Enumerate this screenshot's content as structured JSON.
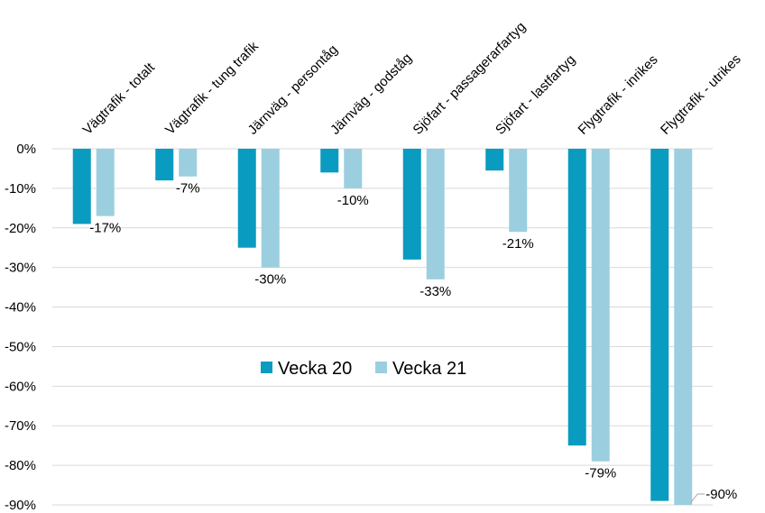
{
  "chart_data": {
    "type": "bar",
    "categories": [
      "Vägtrafik - totalt",
      "Vägtrafik - tung trafik",
      "Järnväg - persontåg",
      "Järnväg - godståg",
      "Sjöfart - passagerarfartyg",
      "Sjöfart - lastfartyg",
      "Flygtrafik - inrikes",
      "Flygtrafik - utrikes"
    ],
    "series": [
      {
        "name": "Vecka 20",
        "color": "#0a9bc0",
        "values": [
          -19,
          -8,
          -25,
          -6,
          -28,
          -5.5,
          -75,
          -89
        ]
      },
      {
        "name": "Vecka 21",
        "color": "#9bcfdf",
        "values": [
          -17,
          -7,
          -30,
          -10,
          -33,
          -21,
          -79,
          -90
        ]
      }
    ],
    "data_labels": [
      "-17%",
      "-7%",
      "-30%",
      "-10%",
      "-33%",
      "-21%",
      "-79%",
      "-90%"
    ],
    "yticks": [
      0,
      -10,
      -20,
      -30,
      -40,
      -50,
      -60,
      -70,
      -80,
      -90
    ],
    "ytick_labels": [
      "0%",
      "-10%",
      "-20%",
      "-30%",
      "-40%",
      "-50%",
      "-60%",
      "-70%",
      "-80%",
      "-90%"
    ],
    "ylim": [
      -90,
      0
    ],
    "grid": true,
    "legend_position": "center",
    "title": "",
    "xlabel": "",
    "ylabel": ""
  }
}
